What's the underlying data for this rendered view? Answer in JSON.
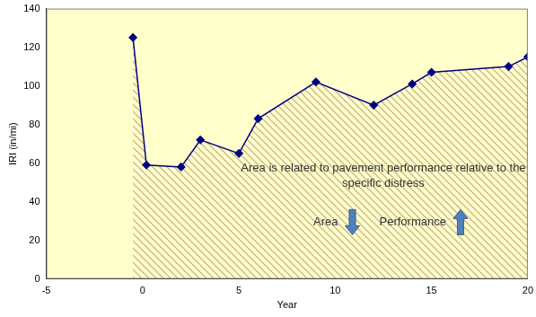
{
  "chart_data": {
    "type": "line",
    "x_label": "Year",
    "y_label": "IRI (in/mi)",
    "x": [
      -0.5,
      0.2,
      2,
      3,
      5,
      6,
      9,
      12,
      14,
      15,
      19,
      20
    ],
    "values": [
      125,
      59,
      58,
      72,
      65,
      83,
      102,
      90,
      101,
      107,
      110,
      115
    ],
    "color": "#000080",
    "marker": "diamond",
    "line_style": "solid",
    "xlim": [
      -5,
      20
    ],
    "xticks": [
      -5,
      0,
      5,
      10,
      15,
      20
    ],
    "ylim": [
      0,
      140
    ],
    "yticks": [
      0,
      20,
      40,
      60,
      80,
      100,
      120,
      140
    ],
    "grid": false,
    "annotations": [
      "Area is related to pavement performance relative to the specific distress",
      "Area",
      "Performance"
    ]
  }
}
